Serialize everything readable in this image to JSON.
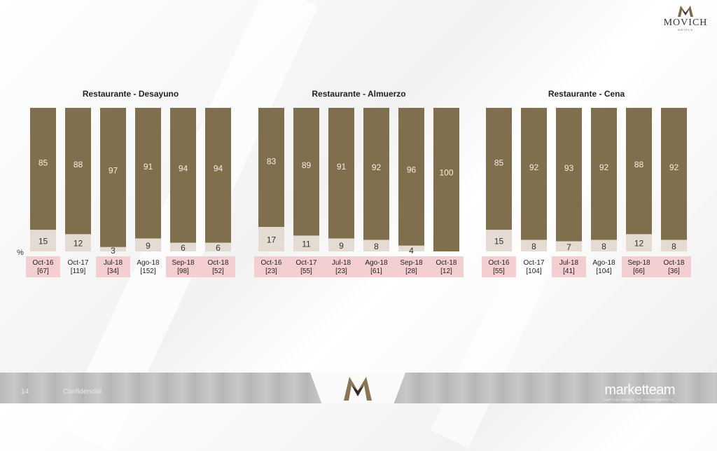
{
  "brand": {
    "logo_word": "MOVICH",
    "logo_sub": "HOTELS",
    "footer_brand": "marketteam",
    "footer_brand_sub": "CAPITALIZAMOS TU CONOCIMIENTO",
    "page_number": "14",
    "confidential": "Confidencial"
  },
  "colors": {
    "main": "#806f4c",
    "rest": "#e4dcd2",
    "highlight_bg": "#f4cfd1",
    "text_dark": "#222222"
  },
  "axis_unit": "%",
  "chart_data": [
    {
      "type": "bar",
      "stacked": true,
      "title": "Restaurante - Desayuno",
      "categories": [
        "Oct-16",
        "Oct-17",
        "Jul-18",
        "Ago-18",
        "Sep-18",
        "Oct-18"
      ],
      "sample_sizes": [
        "[67]",
        "[119]",
        "[34]",
        "[152]",
        "[98]",
        "[52]"
      ],
      "highlighted": [
        true,
        false,
        true,
        false,
        true,
        true
      ],
      "series": [
        {
          "values": [
            85,
            88,
            97,
            91,
            94,
            94
          ]
        },
        {
          "values": [
            15,
            12,
            3,
            9,
            6,
            6
          ]
        }
      ],
      "ylim": [
        0,
        100
      ]
    },
    {
      "type": "bar",
      "stacked": true,
      "title": "Restaurante - Almuerzo",
      "categories": [
        "Oct-16",
        "Oct-17",
        "Jul-18",
        "Ago-18",
        "Sep-18",
        "Oct-18"
      ],
      "sample_sizes": [
        "[23]",
        "[55]",
        "[23]",
        "[61]",
        "[28]",
        "[12]"
      ],
      "highlighted": [
        true,
        true,
        true,
        true,
        true,
        true
      ],
      "series": [
        {
          "values": [
            83,
            89,
            91,
            92,
            96,
            100
          ]
        },
        {
          "values": [
            17,
            11,
            9,
            8,
            4,
            null
          ]
        }
      ],
      "ylim": [
        0,
        100
      ]
    },
    {
      "type": "bar",
      "stacked": true,
      "title": "Restaurante - Cena",
      "categories": [
        "Oct-16",
        "Oct-17",
        "Jul-18",
        "Ago-18",
        "Sep-18",
        "Oct-18"
      ],
      "sample_sizes": [
        "[55]",
        "[104]",
        "[41]",
        "[104]",
        "[66]",
        "[36]"
      ],
      "highlighted": [
        true,
        false,
        true,
        false,
        true,
        true
      ],
      "series": [
        {
          "values": [
            85,
            92,
            93,
            92,
            88,
            92
          ]
        },
        {
          "values": [
            15,
            8,
            7,
            8,
            12,
            8
          ]
        }
      ],
      "ylim": [
        0,
        100
      ]
    }
  ]
}
